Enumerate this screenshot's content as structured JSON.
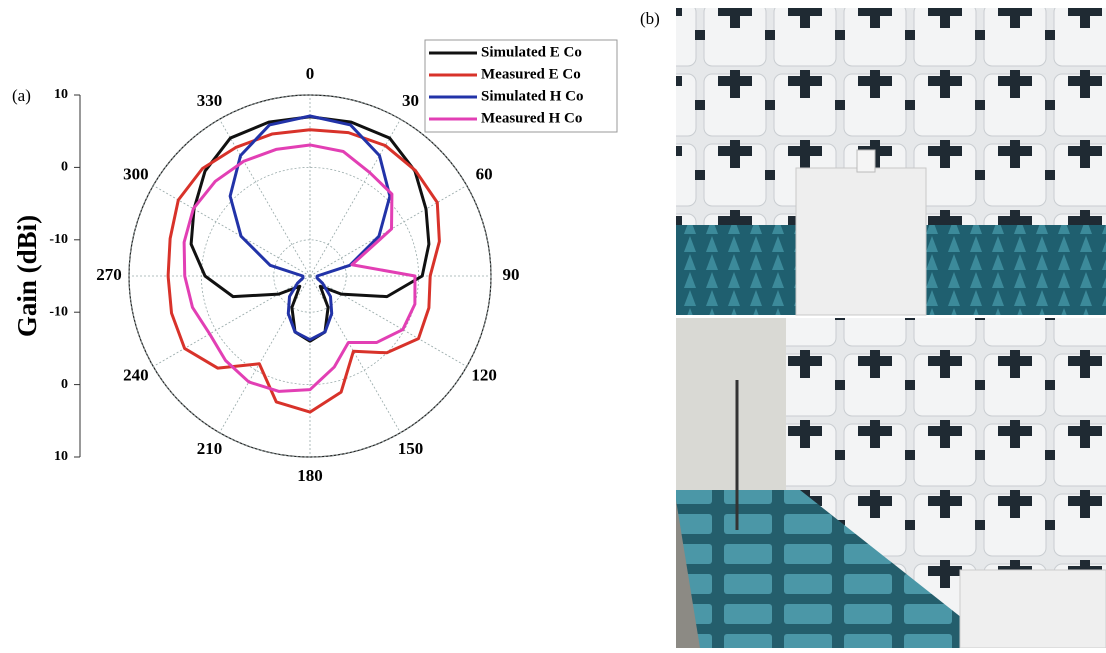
{
  "chart_data": {
    "type": "polar",
    "annotations": [
      "(a)",
      "(b)"
    ],
    "ylabel": "Gain (dBi)",
    "theta": [
      0,
      15,
      30,
      45,
      60,
      75,
      90,
      105,
      120,
      135,
      150,
      165,
      180,
      195,
      210,
      225,
      240,
      255,
      270,
      285,
      300,
      315,
      330,
      345
    ],
    "thetaticks": [
      0,
      30,
      60,
      90,
      120,
      150,
      180,
      210,
      240,
      270,
      300,
      330
    ],
    "rlim": [
      -15,
      10
    ],
    "rticks": [
      -10,
      0,
      10
    ],
    "grid": true,
    "legend": "upper right",
    "series": [
      {
        "name": "Simulated E Co",
        "color": "#111111",
        "values": [
          7,
          7,
          7,
          5.5,
          3.5,
          2,
          0.5,
          -4,
          -10,
          -13,
          -10,
          -7,
          -6,
          -7,
          -10,
          -13,
          -10,
          -4,
          -0.5,
          2,
          3.5,
          5.5,
          7,
          7
        ]
      },
      {
        "name": "Measured E Co",
        "color": "#d8322a",
        "values": [
          5.2,
          5.5,
          5.8,
          5.6,
          5.3,
          3.5,
          1.6,
          2,
          2.3,
          0,
          -3,
          1.6,
          3.8,
          3,
          -1,
          3,
          5,
          4.8,
          4.6,
          5,
          6,
          6,
          5.5,
          5.3
        ]
      },
      {
        "name": "Simulated H Co",
        "color": "#2233a8",
        "values": [
          7.1,
          6.6,
          4.2,
          0.6,
          -4,
          -9.3,
          -14,
          -14,
          -13,
          -11,
          -9,
          -7,
          -6.2,
          -7,
          -9,
          -11,
          -13,
          -14,
          -14,
          -9.3,
          -4,
          0.6,
          4.2,
          6.6
        ]
      },
      {
        "name": "Measured H Co",
        "color": "#e23fb4",
        "values": [
          3.1,
          2.8,
          1.5,
          1,
          -2,
          -9,
          -0.5,
          0,
          -0.2,
          -2,
          -4.4,
          -2,
          0.7,
          1.5,
          1.9,
          1.5,
          1,
          1.8,
          2.3,
          3,
          3.6,
          3.5,
          3.3,
          3.1
        ]
      }
    ]
  }
}
